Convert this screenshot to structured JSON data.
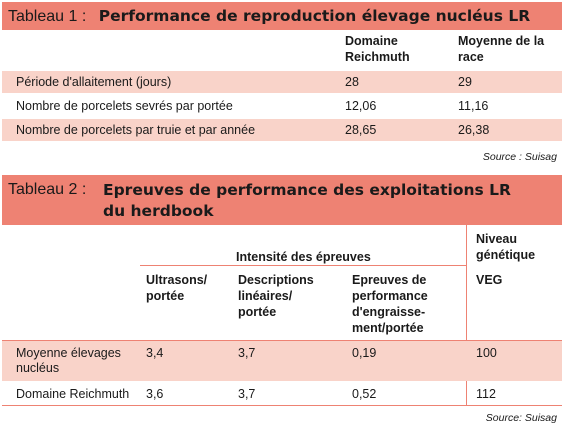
{
  "table1": {
    "label": "Tableau 1 :",
    "title": "Performance de reproduction élevage nucléus LR",
    "col1": "Domaine Reichmuth",
    "col2": "Moyenne de la race",
    "rows": [
      {
        "label": "Période d'allaitement (jours)",
        "v1": "28",
        "v2": "29"
      },
      {
        "label": "Nombre de porcelets sevrés par portée",
        "v1": "12,06",
        "v2": "11,16"
      },
      {
        "label": "Nombre de porcelets par truie et par année",
        "v1": "28,65",
        "v2": "26,38"
      }
    ],
    "source": "Source : Suisag"
  },
  "table2": {
    "label": "Tableau 2 :",
    "title": "Epreuves de performance des exploitations LR du herdbook",
    "group_header": "Intensité des épreuves",
    "genetic_header": "Niveau génétique",
    "col_ultrasons": "Ultrasons/ portée",
    "col_descriptions": "Descriptions linéaires/ portée",
    "col_epreuves": "Epreuves de performance d'engraisse-ment/portée",
    "col_veg": "VEG",
    "rows": [
      {
        "label": "Moyenne élevages nucléus",
        "ultrasons": "3,4",
        "descriptions": "3,7",
        "epreuves": "0,19",
        "veg": "100"
      },
      {
        "label": "Domaine Reichmuth",
        "ultrasons": "3,6",
        "descriptions": "3,7",
        "epreuves": "0,52",
        "veg": "112"
      }
    ],
    "source": "Source: Suisag"
  },
  "colors": {
    "header_bg": "#ee8273",
    "row_shade": "#f9d3c9"
  }
}
